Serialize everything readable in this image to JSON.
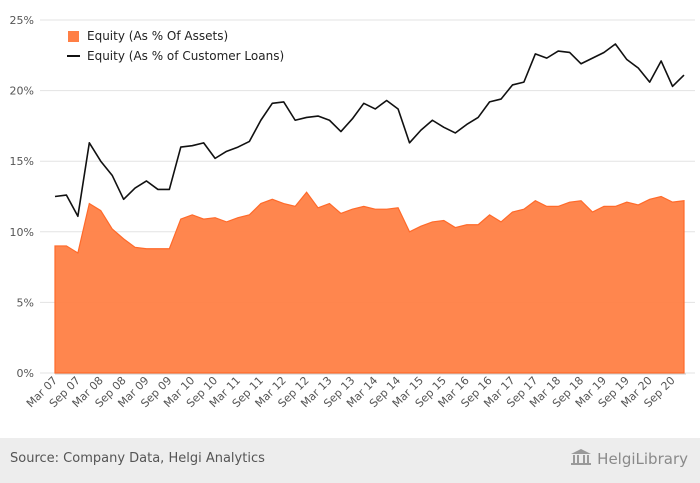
{
  "chart_data": {
    "type": "line",
    "x": [
      "Mar 07",
      "Jun 07",
      "Sep 07",
      "Dec 07",
      "Mar 08",
      "Jun 08",
      "Sep 08",
      "Dec 08",
      "Mar 09",
      "Jun 09",
      "Sep 09",
      "Dec 09",
      "Mar 10",
      "Jun 10",
      "Sep 10",
      "Dec 10",
      "Mar 11",
      "Jun 11",
      "Sep 11",
      "Dec 11",
      "Mar 12",
      "Jun 12",
      "Sep 12",
      "Dec 12",
      "Mar 13",
      "Jun 13",
      "Sep 13",
      "Dec 13",
      "Mar 14",
      "Jun 14",
      "Sep 14",
      "Dec 14",
      "Mar 15",
      "Jun 15",
      "Sep 15",
      "Dec 15",
      "Mar 16",
      "Jun 16",
      "Sep 16",
      "Dec 16",
      "Mar 17",
      "Jun 17",
      "Sep 17",
      "Dec 17",
      "Mar 18",
      "Jun 18",
      "Sep 18",
      "Dec 18",
      "Mar 19",
      "Jun 19",
      "Sep 19",
      "Dec 19",
      "Mar 20",
      "Jun 20",
      "Sep 20",
      "Dec 20"
    ],
    "x_tick_labels": [
      "Mar 07",
      "Sep 07",
      "Mar 08",
      "Sep 08",
      "Mar 09",
      "Sep 09",
      "Mar 10",
      "Sep 10",
      "Mar 11",
      "Sep 11",
      "Mar 12",
      "Sep 12",
      "Mar 13",
      "Sep 13",
      "Mar 14",
      "Sep 14",
      "Mar 15",
      "Sep 15",
      "Mar 16",
      "Sep 16",
      "Mar 17",
      "Sep 17",
      "Mar 18",
      "Sep 18",
      "Mar 19",
      "Sep 19",
      "Mar 20",
      "Sep 20"
    ],
    "y_ticks": [
      0,
      5,
      10,
      15,
      20,
      25
    ],
    "y_tick_format": "%",
    "ylim": [
      0,
      25
    ],
    "grid": "horizontal",
    "legend_position": "top-left",
    "series": [
      {
        "name": "Equity (As % Of Assets)",
        "type": "area",
        "color": "#ff7f45",
        "values": [
          9.0,
          9.0,
          8.5,
          12.0,
          11.5,
          10.2,
          9.5,
          8.9,
          8.8,
          8.8,
          8.8,
          10.9,
          11.2,
          10.9,
          11.0,
          10.7,
          11.0,
          11.2,
          12.0,
          12.3,
          12.0,
          11.8,
          12.8,
          11.7,
          12.0,
          11.3,
          11.6,
          11.8,
          11.6,
          11.6,
          11.7,
          10.0,
          10.4,
          10.7,
          10.8,
          10.3,
          10.5,
          10.5,
          11.2,
          10.7,
          11.4,
          11.6,
          12.2,
          11.8,
          11.8,
          12.1,
          12.2,
          11.4,
          11.8,
          11.8,
          12.1,
          11.9,
          12.3,
          12.5,
          12.1,
          12.2
        ]
      },
      {
        "name": "Equity (As % of Customer Loans)",
        "type": "line",
        "color": "#111111",
        "values": [
          12.5,
          12.6,
          11.1,
          16.3,
          15.0,
          14.0,
          12.3,
          13.1,
          13.6,
          13.0,
          13.0,
          16.0,
          16.1,
          16.3,
          15.2,
          15.7,
          16.0,
          16.4,
          17.9,
          19.1,
          19.2,
          17.9,
          18.1,
          18.2,
          17.9,
          17.1,
          18.0,
          19.1,
          18.7,
          19.3,
          18.7,
          16.3,
          17.2,
          17.9,
          17.4,
          17.0,
          17.6,
          18.1,
          19.2,
          19.4,
          20.4,
          20.6,
          22.6,
          22.3,
          22.8,
          22.7,
          21.9,
          22.3,
          22.7,
          23.3,
          22.2,
          21.6,
          20.6,
          22.1,
          20.3,
          21.1
        ]
      }
    ]
  },
  "footer": {
    "source": "Source: Company Data, Helgi Analytics",
    "brand_name": "HelgiLibrary",
    "brand_icon": "library-building-icon"
  }
}
